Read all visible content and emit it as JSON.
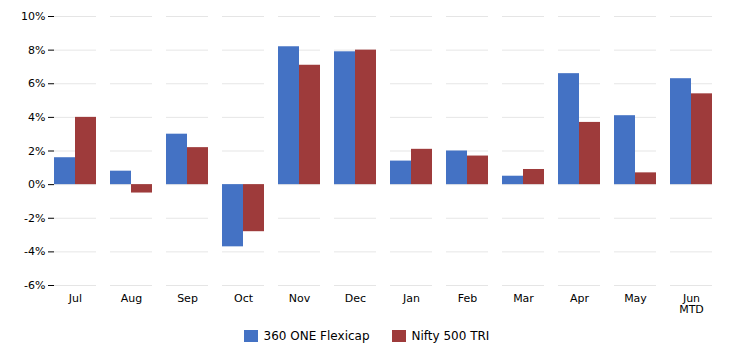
{
  "chart_data": {
    "type": "bar",
    "categories": [
      "Jul",
      "Aug",
      "Sep",
      "Oct",
      "Nov",
      "Dec",
      "Jan",
      "Feb",
      "Mar",
      "Apr",
      "May",
      "Jun\nMTD"
    ],
    "series": [
      {
        "name": "360 ONE Flexicap",
        "color": "#4472C4",
        "values": [
          1.6,
          0.8,
          3.0,
          -3.7,
          8.2,
          7.9,
          1.4,
          2.0,
          0.5,
          6.6,
          4.1,
          6.3
        ]
      },
      {
        "name": "Nifty 500 TRI",
        "color": "#9E3B3B",
        "values": [
          4.0,
          -0.5,
          2.2,
          -2.8,
          7.1,
          8.0,
          2.1,
          1.7,
          0.9,
          3.7,
          0.7,
          5.4
        ]
      }
    ],
    "ylim": [
      -6,
      10
    ],
    "yticks": [
      {
        "value": -6,
        "label": "-6%"
      },
      {
        "value": -4,
        "label": "-4%"
      },
      {
        "value": -2,
        "label": "-2%"
      },
      {
        "value": 0,
        "label": "0%"
      },
      {
        "value": 2,
        "label": "2%"
      },
      {
        "value": 4,
        "label": "4%"
      },
      {
        "value": 6,
        "label": "6%"
      },
      {
        "value": 8,
        "label": "8%"
      },
      {
        "value": 10,
        "label": "10%"
      }
    ],
    "grid": true,
    "legend": "bottom"
  }
}
